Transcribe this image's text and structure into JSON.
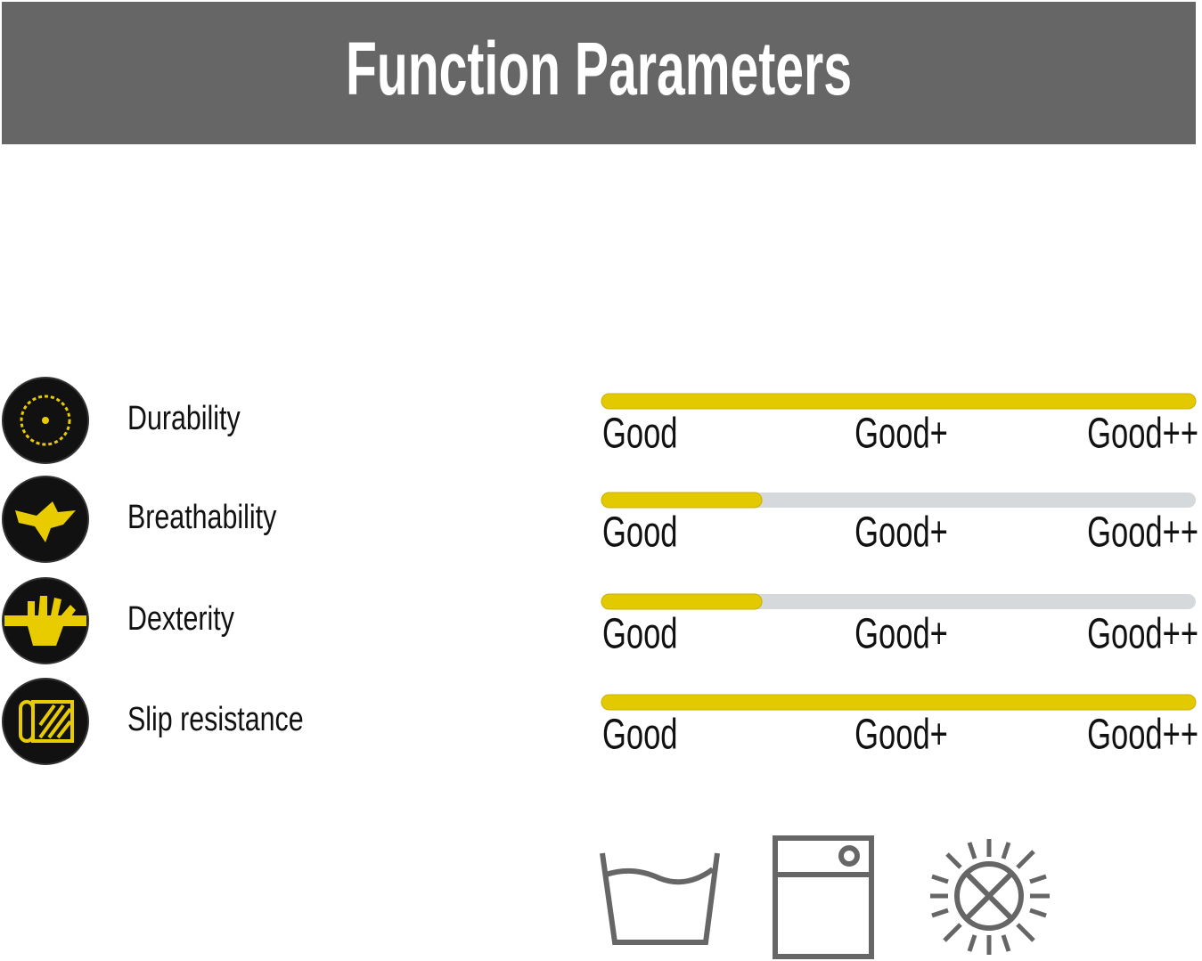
{
  "header": {
    "title": "Function Parameters"
  },
  "parameters": [
    {
      "name": "Durability",
      "fill": 1,
      "levels": [
        "Good",
        "Good+",
        "Good++"
      ]
    },
    {
      "name": "Breathability",
      "fill": 0.27,
      "levels": [
        "Good",
        "Good+",
        "Good++"
      ]
    },
    {
      "name": "Dexterity",
      "fill": 0.27,
      "levels": [
        "Good",
        "Good+",
        "Good++"
      ]
    },
    {
      "name": "Slip resistance",
      "fill": 1,
      "levels": [
        "Good",
        "Good+",
        "Good++"
      ]
    }
  ]
}
